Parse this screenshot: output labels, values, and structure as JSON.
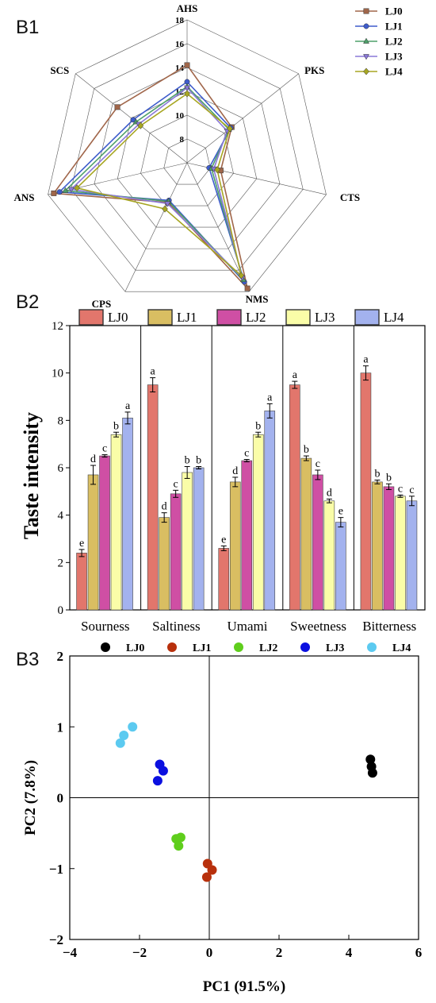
{
  "panels": {
    "b1": "B1",
    "b2": "B2",
    "b3": "B3"
  },
  "chart_data": [
    {
      "type": "radar",
      "axes": [
        "AHS",
        "PKS",
        "CTS",
        "NMS",
        "CPS",
        "ANS",
        "SCS"
      ],
      "radial_ticks": [
        "8",
        "10",
        "12",
        "14",
        "16",
        "18"
      ],
      "rlim": [
        6,
        18
      ],
      "legend_position": "top-right",
      "series": [
        {
          "name": "LJ0",
          "color": "#a0664a",
          "marker": "square",
          "values": [
            14.2,
            10.8,
            8.9,
            17.7,
            9.7,
            17.5,
            13.5
          ]
        },
        {
          "name": "LJ1",
          "color": "#3e5ccc",
          "marker": "circle",
          "values": [
            12.8,
            10.7,
            7.9,
            17.1,
            9.5,
            17.0,
            11.8
          ]
        },
        {
          "name": "LJ2",
          "color": "#4ea06a",
          "marker": "triangle",
          "values": [
            12.4,
            10.5,
            8.1,
            16.9,
            9.6,
            16.5,
            11.5
          ]
        },
        {
          "name": "LJ3",
          "color": "#8a78d8",
          "marker": "tri-down",
          "values": [
            12.3,
            10.3,
            8.3,
            16.7,
            9.8,
            16.0,
            11.2
          ]
        },
        {
          "name": "LJ4",
          "color": "#a7a622",
          "marker": "diamond",
          "values": [
            11.8,
            10.6,
            8.6,
            16.5,
            10.3,
            15.5,
            11.0
          ]
        }
      ]
    },
    {
      "type": "bar",
      "ylabel": "Taste intensity",
      "ylim": [
        0,
        12
      ],
      "yticks": [
        "0",
        "2",
        "4",
        "6",
        "8",
        "10",
        "12"
      ],
      "categories": [
        "Sourness",
        "Saltiness",
        "Umami",
        "Sweetness",
        "Bitterness"
      ],
      "legend_position": "top",
      "series": [
        {
          "name": "LJ0",
          "color": "#e2766c",
          "values": [
            2.4,
            9.5,
            2.6,
            9.5,
            10.0
          ],
          "errors": [
            0.15,
            0.3,
            0.1,
            0.15,
            0.3
          ],
          "letters": [
            "e",
            "a",
            "e",
            "a",
            "a"
          ]
        },
        {
          "name": "LJ1",
          "color": "#d9be62",
          "values": [
            5.7,
            3.9,
            5.4,
            6.4,
            5.4
          ],
          "errors": [
            0.4,
            0.2,
            0.2,
            0.1,
            0.08
          ],
          "letters": [
            "d",
            "d",
            "d",
            "b",
            "b"
          ]
        },
        {
          "name": "LJ2",
          "color": "#cf4fa4",
          "values": [
            6.5,
            4.9,
            6.3,
            5.7,
            5.2
          ],
          "errors": [
            0.05,
            0.15,
            0.05,
            0.2,
            0.12
          ],
          "letters": [
            "c",
            "c",
            "c",
            "c",
            "b"
          ]
        },
        {
          "name": "LJ3",
          "color": "#fafda8",
          "values": [
            7.4,
            5.8,
            7.4,
            4.6,
            4.8
          ],
          "errors": [
            0.1,
            0.25,
            0.1,
            0.08,
            0.05
          ],
          "letters": [
            "b",
            "b",
            "b",
            "d",
            "c"
          ]
        },
        {
          "name": "LJ4",
          "color": "#a3b2ee",
          "values": [
            8.1,
            6.0,
            8.4,
            3.7,
            4.6
          ],
          "errors": [
            0.25,
            0.05,
            0.3,
            0.2,
            0.2
          ],
          "letters": [
            "a",
            "b",
            "a",
            "e",
            "c"
          ]
        }
      ]
    },
    {
      "type": "scatter",
      "xlabel": "PC1 (91.5%)",
      "ylabel": "PC2 (7.8%)",
      "xlim": [
        -4,
        6
      ],
      "ylim": [
        -2,
        2
      ],
      "xticks": [
        "−4",
        "−2",
        "0",
        "2",
        "4",
        "6"
      ],
      "yticks": [
        "−2",
        "−1",
        "0",
        "1",
        "2"
      ],
      "legend_position": "top",
      "series": [
        {
          "name": "LJ0",
          "color": "#000000",
          "points": [
            [
              4.62,
              0.54
            ],
            [
              4.65,
              0.44
            ],
            [
              4.68,
              0.35
            ]
          ]
        },
        {
          "name": "LJ1",
          "color": "#b8300c",
          "points": [
            [
              -0.05,
              -0.93
            ],
            [
              0.08,
              -1.02
            ],
            [
              -0.07,
              -1.12
            ]
          ]
        },
        {
          "name": "LJ2",
          "color": "#5fce1c",
          "points": [
            [
              -0.95,
              -0.58
            ],
            [
              -0.82,
              -0.56
            ],
            [
              -0.88,
              -0.68
            ]
          ]
        },
        {
          "name": "LJ3",
          "color": "#0b10e0",
          "points": [
            [
              -1.42,
              0.47
            ],
            [
              -1.32,
              0.38
            ],
            [
              -1.48,
              0.24
            ]
          ]
        },
        {
          "name": "LJ4",
          "color": "#5ccaf0",
          "points": [
            [
              -2.2,
              1.0
            ],
            [
              -2.45,
              0.88
            ],
            [
              -2.55,
              0.77
            ]
          ]
        }
      ]
    }
  ]
}
